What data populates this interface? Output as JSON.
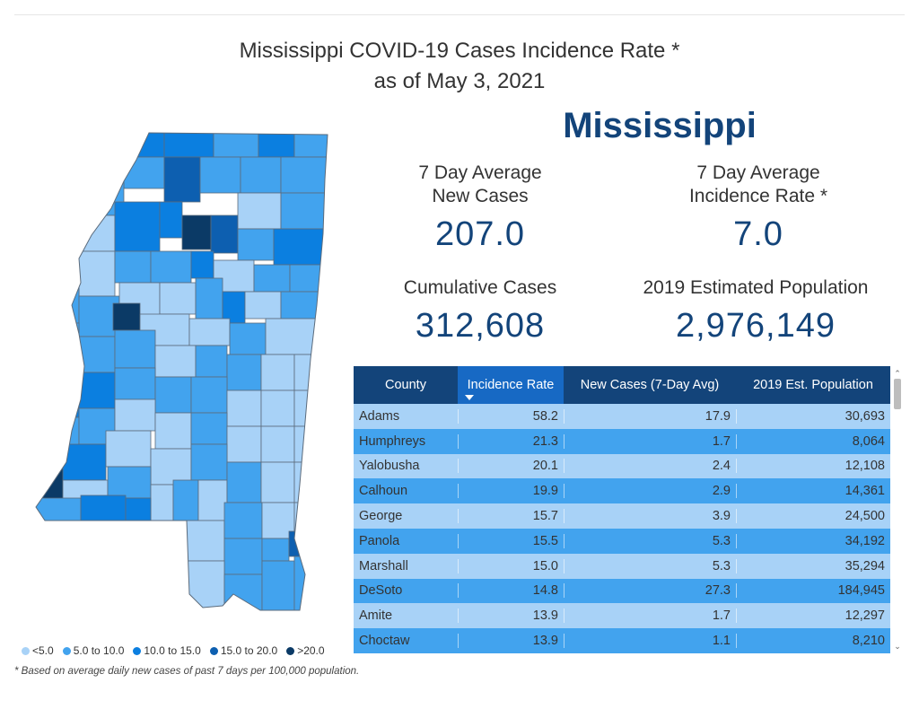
{
  "title": {
    "line1": "Mississippi COVID-19 Cases Incidence Rate *",
    "line2": "as of May 3, 2021"
  },
  "state_name": "Mississippi",
  "kpis": {
    "avg_new_cases": {
      "label1": "7 Day Average",
      "label2": "New Cases",
      "value": "207.0"
    },
    "avg_incidence": {
      "label1": "7 Day Average",
      "label2": "Incidence Rate *",
      "value": "7.0"
    },
    "cumulative": {
      "label": "Cumulative Cases",
      "value": "312,608"
    },
    "population": {
      "label": "2019 Estimated Population",
      "value": "2,976,149"
    }
  },
  "table": {
    "columns": [
      "County",
      "Incidence Rate",
      "New Cases (7-Day Avg)",
      "2019 Est. Population"
    ],
    "rows": [
      [
        "Adams",
        "58.2",
        "17.9",
        "30,693"
      ],
      [
        "Humphreys",
        "21.3",
        "1.7",
        "8,064"
      ],
      [
        "Yalobusha",
        "20.1",
        "2.4",
        "12,108"
      ],
      [
        "Calhoun",
        "19.9",
        "2.9",
        "14,361"
      ],
      [
        "George",
        "15.7",
        "3.9",
        "24,500"
      ],
      [
        "Panola",
        "15.5",
        "5.3",
        "34,192"
      ],
      [
        "Marshall",
        "15.0",
        "5.3",
        "35,294"
      ],
      [
        "DeSoto",
        "14.8",
        "27.3",
        "184,945"
      ],
      [
        "Amite",
        "13.9",
        "1.7",
        "12,297"
      ],
      [
        "Choctaw",
        "13.9",
        "1.1",
        "8,210"
      ]
    ]
  },
  "legend": [
    {
      "label": "<5.0",
      "color": "#a8d2f7"
    },
    {
      "label": "5.0 to 10.0",
      "color": "#42a3ee"
    },
    {
      "label": "10.0 to 15.0",
      "color": "#0b7fe0"
    },
    {
      "label": "15.0 to 20.0",
      "color": "#0d5fb0"
    },
    {
      "label": ">20.0",
      "color": "#0b3a66"
    }
  ],
  "footnote": "* Based on average daily new cases of past 7 days per 100,000 population.",
  "icons": {
    "sort": "caret-down-icon",
    "scroll_up": "chevron-up-icon",
    "scroll_down": "chevron-down-icon"
  }
}
